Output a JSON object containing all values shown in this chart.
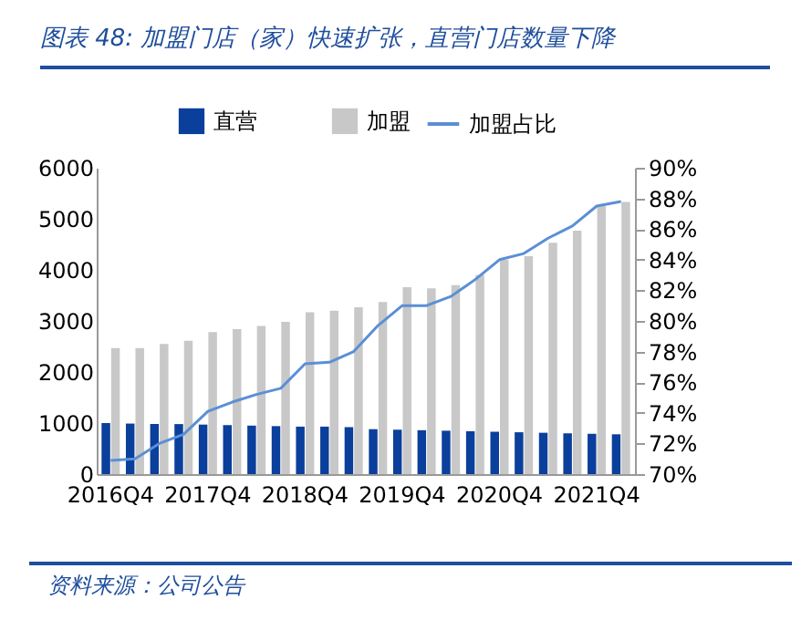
{
  "chart_data": {
    "type": "bar",
    "title": "图表 48: 加盟门店（家）快速扩张，直营门店数量下降",
    "categories": [
      "2016Q4",
      null,
      null,
      null,
      "2017Q4",
      null,
      null,
      null,
      "2018Q4",
      null,
      null,
      null,
      "2019Q4",
      null,
      null,
      null,
      "2020Q4",
      null,
      null,
      null,
      "2021Q4",
      null
    ],
    "series": [
      {
        "name": "直营",
        "type": "bar",
        "color": "#0a3f9c",
        "values": [
          1000,
          990,
          980,
          980,
          970,
          960,
          950,
          940,
          930,
          930,
          920,
          880,
          870,
          860,
          850,
          840,
          830,
          820,
          810,
          800,
          790,
          780
        ]
      },
      {
        "name": "加盟",
        "type": "bar",
        "color": "#c8c8c8",
        "values": [
          2470,
          2470,
          2550,
          2610,
          2780,
          2840,
          2900,
          2980,
          3170,
          3200,
          3270,
          3370,
          3660,
          3640,
          3700,
          3900,
          4200,
          4270,
          4530,
          4770,
          5250,
          5330
        ]
      },
      {
        "name": "加盟占比",
        "type": "line",
        "axis": "y2",
        "color": "#5b8fd6",
        "values": [
          70.9,
          71.0,
          72.0,
          72.6,
          74.1,
          74.7,
          75.2,
          75.6,
          77.2,
          77.3,
          78.0,
          79.7,
          81.0,
          81.0,
          81.6,
          82.7,
          84.0,
          84.4,
          85.4,
          86.2,
          87.5,
          87.8
        ]
      }
    ],
    "ylim": [
      0,
      6000
    ],
    "yticks": [
      0,
      1000,
      2000,
      3000,
      4000,
      5000,
      6000
    ],
    "y2lim": [
      70,
      90
    ],
    "y2ticks": [
      {
        "value": 70,
        "label": "70%"
      },
      {
        "value": 72,
        "label": "72%"
      },
      {
        "value": 74,
        "label": "74%"
      },
      {
        "value": 76,
        "label": "76%"
      },
      {
        "value": 78,
        "label": "78%"
      },
      {
        "value": 80,
        "label": "80%"
      },
      {
        "value": 82,
        "label": "82%"
      },
      {
        "value": 84,
        "label": "84%"
      },
      {
        "value": 86,
        "label": "86%"
      },
      {
        "value": 88,
        "label": "88%"
      },
      {
        "value": 90,
        "label": "90%"
      }
    ],
    "legend": "top",
    "annotations": [
      "资料来源：公司公告"
    ]
  }
}
